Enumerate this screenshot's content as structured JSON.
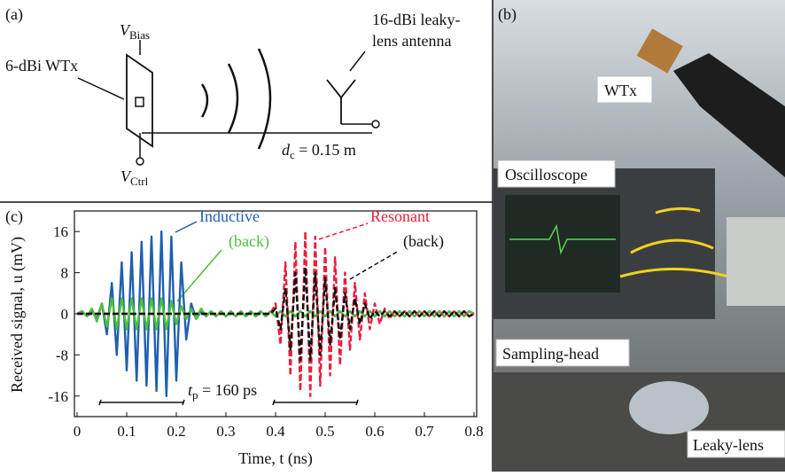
{
  "schematic": {
    "panel": "(a)",
    "bias": {
      "symbol": "V",
      "subscript": "Bias"
    },
    "transmitter": "6-dBi WTx",
    "receiver": [
      "16-dBi leaky-",
      "lens antenna"
    ],
    "distance": {
      "symbol": "d",
      "subscript": "c",
      "rest": " = 0.15 m"
    },
    "control": {
      "symbol": "V",
      "subscript": "Ctrl"
    }
  },
  "photo": {
    "panel": "(b)",
    "labels": [
      "WTx",
      "Oscilloscope",
      "Sampling-head",
      "Leaky-lens"
    ]
  },
  "chart_data": {
    "type": "line",
    "panel": "(c)",
    "x_label": "Time, t (ns)",
    "y_label": "Received signal, u (mV)",
    "pulse_width": {
      "symbol": "t",
      "subscript": "p",
      "rest": " = 160 ps"
    },
    "xlim": [
      0,
      0.8
    ],
    "ylim": [
      -20,
      20
    ],
    "xticks": [
      0,
      0.1,
      0.2,
      0.3,
      0.4,
      0.5,
      0.6,
      0.7,
      0.8
    ],
    "yticks": [
      -16,
      -8,
      0,
      8,
      16
    ],
    "x": [
      0,
      0.01,
      0.02,
      0.03,
      0.04,
      0.05,
      0.06,
      0.07,
      0.08,
      0.09,
      0.1,
      0.11,
      0.12,
      0.13,
      0.14,
      0.15,
      0.16,
      0.17,
      0.18,
      0.19,
      0.2,
      0.21,
      0.22,
      0.23,
      0.24,
      0.25,
      0.26,
      0.27,
      0.28,
      0.29,
      0.3,
      0.31,
      0.32,
      0.33,
      0.34,
      0.35,
      0.36,
      0.37,
      0.38,
      0.39,
      0.4,
      0.41,
      0.42,
      0.43,
      0.44,
      0.45,
      0.46,
      0.47,
      0.48,
      0.49,
      0.5,
      0.51,
      0.52,
      0.53,
      0.54,
      0.55,
      0.56,
      0.57,
      0.58,
      0.59,
      0.6,
      0.61,
      0.62,
      0.63,
      0.64,
      0.65,
      0.66,
      0.67,
      0.68,
      0.69,
      0.7,
      0.71,
      0.72,
      0.73,
      0.74,
      0.75,
      0.76,
      0.77,
      0.78,
      0.79,
      0.8
    ],
    "series": [
      {
        "name": "Inductive",
        "color": "#1f5fb0",
        "dash": false,
        "values": [
          0,
          0.5,
          -0.5,
          0.5,
          -1,
          2,
          -4,
          6,
          -8,
          10,
          -11,
          12,
          -13,
          14,
          -14,
          15,
          -15,
          16,
          -16,
          15,
          -13,
          10,
          -5,
          2,
          -1,
          0.5,
          -0.5,
          0.5,
          -0.5,
          0.5,
          -0.5,
          0.5,
          -0.5,
          0.5,
          -0.5,
          0.5,
          -0.5,
          0.5,
          -0.5,
          0.5,
          -0.5,
          0.5,
          -0.5,
          0.5,
          -0.5,
          0.5,
          -0.5,
          0.5,
          -0.5,
          0.5,
          -0.5,
          0.5,
          -0.5,
          0.5,
          -0.5,
          0.5,
          -0.5,
          0.5,
          -0.5,
          0.5,
          -0.5,
          0.5,
          -0.5,
          0.5,
          -0.5,
          0.5,
          -0.5,
          0.5,
          -0.5,
          0.5,
          -0.5,
          0.5,
          -0.5,
          0.5,
          -0.5,
          0.5,
          -0.5,
          0.5,
          -0.5,
          0.5,
          0
        ]
      },
      {
        "name": "(back)",
        "color": "#4bbf3c",
        "dash": false,
        "values": [
          0,
          0.5,
          -0.5,
          1,
          -1.5,
          2,
          -2.5,
          3,
          -3,
          3,
          -3,
          3,
          -3,
          3,
          -3,
          3,
          -3,
          3,
          -3,
          2.5,
          -2,
          1.5,
          -1,
          1,
          -1,
          1,
          -0.5,
          0.5,
          -0.5,
          0.5,
          -0.5,
          0.5,
          -0.5,
          0.5,
          -0.5,
          0.5,
          -0.5,
          0.5,
          -0.5,
          0.5,
          -0.5,
          0.5,
          -0.5,
          0.5,
          -0.5,
          0.5,
          -0.5,
          0.5,
          -0.5,
          0.5,
          -0.5,
          0.5,
          -0.5,
          0.5,
          -0.5,
          0.5,
          -0.5,
          0.5,
          -0.5,
          0.5,
          -0.5,
          0.5,
          -0.5,
          0.5,
          -0.5,
          0.5,
          -0.5,
          0.5,
          -0.5,
          0.5,
          -0.5,
          0.5,
          -0.5,
          0.5,
          -0.5,
          0.5,
          -0.5,
          0.5,
          -0.5,
          0.5,
          0
        ]
      },
      {
        "name": "Resonant",
        "color": "#e8203c",
        "dash": true,
        "values": [
          0,
          0,
          0,
          0,
          0,
          0,
          0,
          0,
          0,
          0,
          0,
          0,
          0,
          0,
          0,
          0,
          0,
          0,
          0,
          0,
          0,
          0,
          0,
          0,
          0,
          0,
          0,
          0,
          0,
          0,
          0,
          0,
          0,
          0,
          0,
          0,
          0,
          0,
          0,
          0,
          2,
          -6,
          10,
          -12,
          14,
          -15,
          16,
          -16,
          15,
          -14,
          13,
          -12,
          11,
          -10,
          8,
          -7,
          6,
          -5,
          4,
          -3,
          2,
          -2,
          1,
          -1,
          0.5,
          -0.5,
          0.5,
          -0.5,
          0.5,
          -0.5,
          0.5,
          -0.5,
          0.5,
          -0.5,
          0.5,
          -0.5,
          0.5,
          -0.5,
          0.5,
          -0.5,
          0
        ]
      },
      {
        "name": "(back)",
        "color": "#111111",
        "dash": true,
        "values": [
          0,
          0,
          0,
          0,
          0,
          0,
          0,
          0,
          0,
          0,
          0,
          0,
          0,
          0,
          0,
          0,
          0,
          0,
          0,
          0,
          0,
          0,
          0,
          0,
          0,
          0,
          0,
          0,
          0,
          0,
          0,
          0,
          0,
          0,
          0,
          0,
          0,
          0,
          0,
          0,
          1,
          -3,
          5,
          -7,
          8,
          -9,
          9,
          -9,
          8,
          -8,
          7,
          -6,
          5,
          -5,
          4,
          -3,
          3,
          -2,
          2,
          -1,
          0.5,
          -0.5,
          0.5,
          -0.5,
          0.5,
          -0.5,
          0.5,
          -0.5,
          0.5,
          -0.5,
          0.5,
          -0.5,
          0.5,
          -0.5,
          0.5,
          -0.5,
          0.5,
          -0.5,
          0.5,
          -0.5,
          0
        ]
      }
    ]
  }
}
